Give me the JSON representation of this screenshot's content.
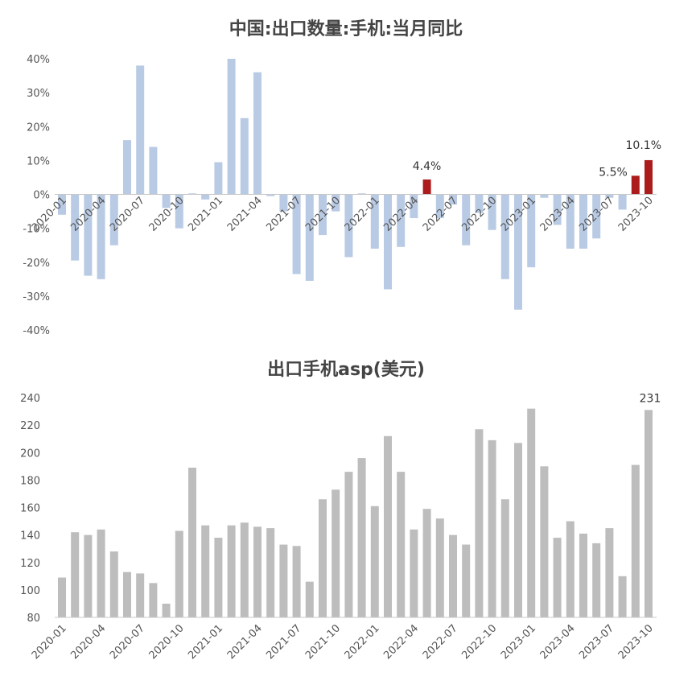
{
  "chart_data": [
    {
      "type": "bar",
      "title": "中国:出口数量:手机:当月同比",
      "unit": "%",
      "ylim": [
        -40,
        40
      ],
      "ytick_labels": [
        "40%",
        "30%",
        "20%",
        "10%",
        "0%",
        "-10%",
        "-20%",
        "-30%",
        "-40%"
      ],
      "xtick_labels": [
        "2020-01",
        "2020-04",
        "2020-07",
        "2020-10",
        "2021-01",
        "2021-04",
        "2021-07",
        "2021-10",
        "2022-01",
        "2022-04",
        "2022-07",
        "2022-10",
        "2023-01",
        "2023-04",
        "2023-07",
        "2023-10"
      ],
      "categories": [
        "2020-01",
        "2020-02",
        "2020-03",
        "2020-04",
        "2020-05",
        "2020-06",
        "2020-07",
        "2020-08",
        "2020-09",
        "2020-10",
        "2020-11",
        "2020-12",
        "2021-01",
        "2021-02",
        "2021-03",
        "2021-04",
        "2021-05",
        "2021-06",
        "2021-07",
        "2021-08",
        "2021-09",
        "2021-10",
        "2021-11",
        "2021-12",
        "2022-01",
        "2022-02",
        "2022-03",
        "2022-04",
        "2022-05",
        "2022-06",
        "2022-07",
        "2022-08",
        "2022-09",
        "2022-10",
        "2022-11",
        "2022-12",
        "2023-01",
        "2023-02",
        "2023-03",
        "2023-04",
        "2023-05",
        "2023-06",
        "2023-07",
        "2023-08",
        "2023-09",
        "2023-10"
      ],
      "values": [
        -6,
        -19.5,
        -24,
        -25,
        -15,
        16,
        38,
        14,
        -4,
        -10,
        0.3,
        -1.5,
        9.5,
        40,
        22.5,
        36,
        -0.5,
        -5,
        -23.5,
        -25.5,
        -12,
        -5,
        -18.5,
        0.3,
        -16,
        -28,
        -15.5,
        -7,
        4.4,
        -7,
        -3,
        -15,
        -5.5,
        -10.5,
        -25,
        -34,
        -21.5,
        -1,
        -9,
        -16,
        -16,
        -13,
        -1,
        -4.5,
        5.5,
        10.1
      ],
      "highlight_indices": [
        28,
        44,
        45
      ],
      "colors": {
        "normal": "#b9cbe4",
        "highlight": "#ad1c1c"
      },
      "annotations": [
        {
          "index": 28,
          "text": "4.4%"
        },
        {
          "index": 44,
          "text": "5.5%"
        },
        {
          "index": 45,
          "text": "10.1%"
        }
      ],
      "grid": false
    },
    {
      "type": "bar",
      "title": "出口手机asp(美元)",
      "ylim": [
        80,
        240
      ],
      "ytick_labels": [
        "240",
        "220",
        "200",
        "180",
        "160",
        "140",
        "120",
        "100",
        "80"
      ],
      "xtick_labels": [
        "2020-01",
        "2020-04",
        "2020-07",
        "2020-10",
        "2021-01",
        "2021-04",
        "2021-07",
        "2021-10",
        "2022-01",
        "2022-04",
        "2022-07",
        "2022-10",
        "2023-01",
        "2023-04",
        "2023-07",
        "2023-10"
      ],
      "categories": [
        "2020-01",
        "2020-02",
        "2020-03",
        "2020-04",
        "2020-05",
        "2020-06",
        "2020-07",
        "2020-08",
        "2020-09",
        "2020-10",
        "2020-11",
        "2020-12",
        "2021-01",
        "2021-02",
        "2021-03",
        "2021-04",
        "2021-05",
        "2021-06",
        "2021-07",
        "2021-08",
        "2021-09",
        "2021-10",
        "2021-11",
        "2021-12",
        "2022-01",
        "2022-02",
        "2022-03",
        "2022-04",
        "2022-05",
        "2022-06",
        "2022-07",
        "2022-08",
        "2022-09",
        "2022-10",
        "2022-11",
        "2022-12",
        "2023-01",
        "2023-02",
        "2023-03",
        "2023-04",
        "2023-05",
        "2023-06",
        "2023-07",
        "2023-08",
        "2023-09",
        "2023-10"
      ],
      "values": [
        109,
        142,
        140,
        144,
        128,
        113,
        112,
        105,
        90,
        143,
        189,
        147,
        138,
        147,
        149,
        146,
        145,
        133,
        132,
        106,
        166,
        173,
        186,
        196,
        161,
        212,
        186,
        144,
        159,
        152,
        140,
        133,
        217,
        209,
        166,
        207,
        232,
        190,
        138,
        150,
        141,
        134,
        145,
        110,
        191,
        231
      ],
      "colors": {
        "normal": "#bdbdbd"
      },
      "annotations": [
        {
          "index": 45,
          "text": "231"
        }
      ],
      "grid": false
    }
  ]
}
